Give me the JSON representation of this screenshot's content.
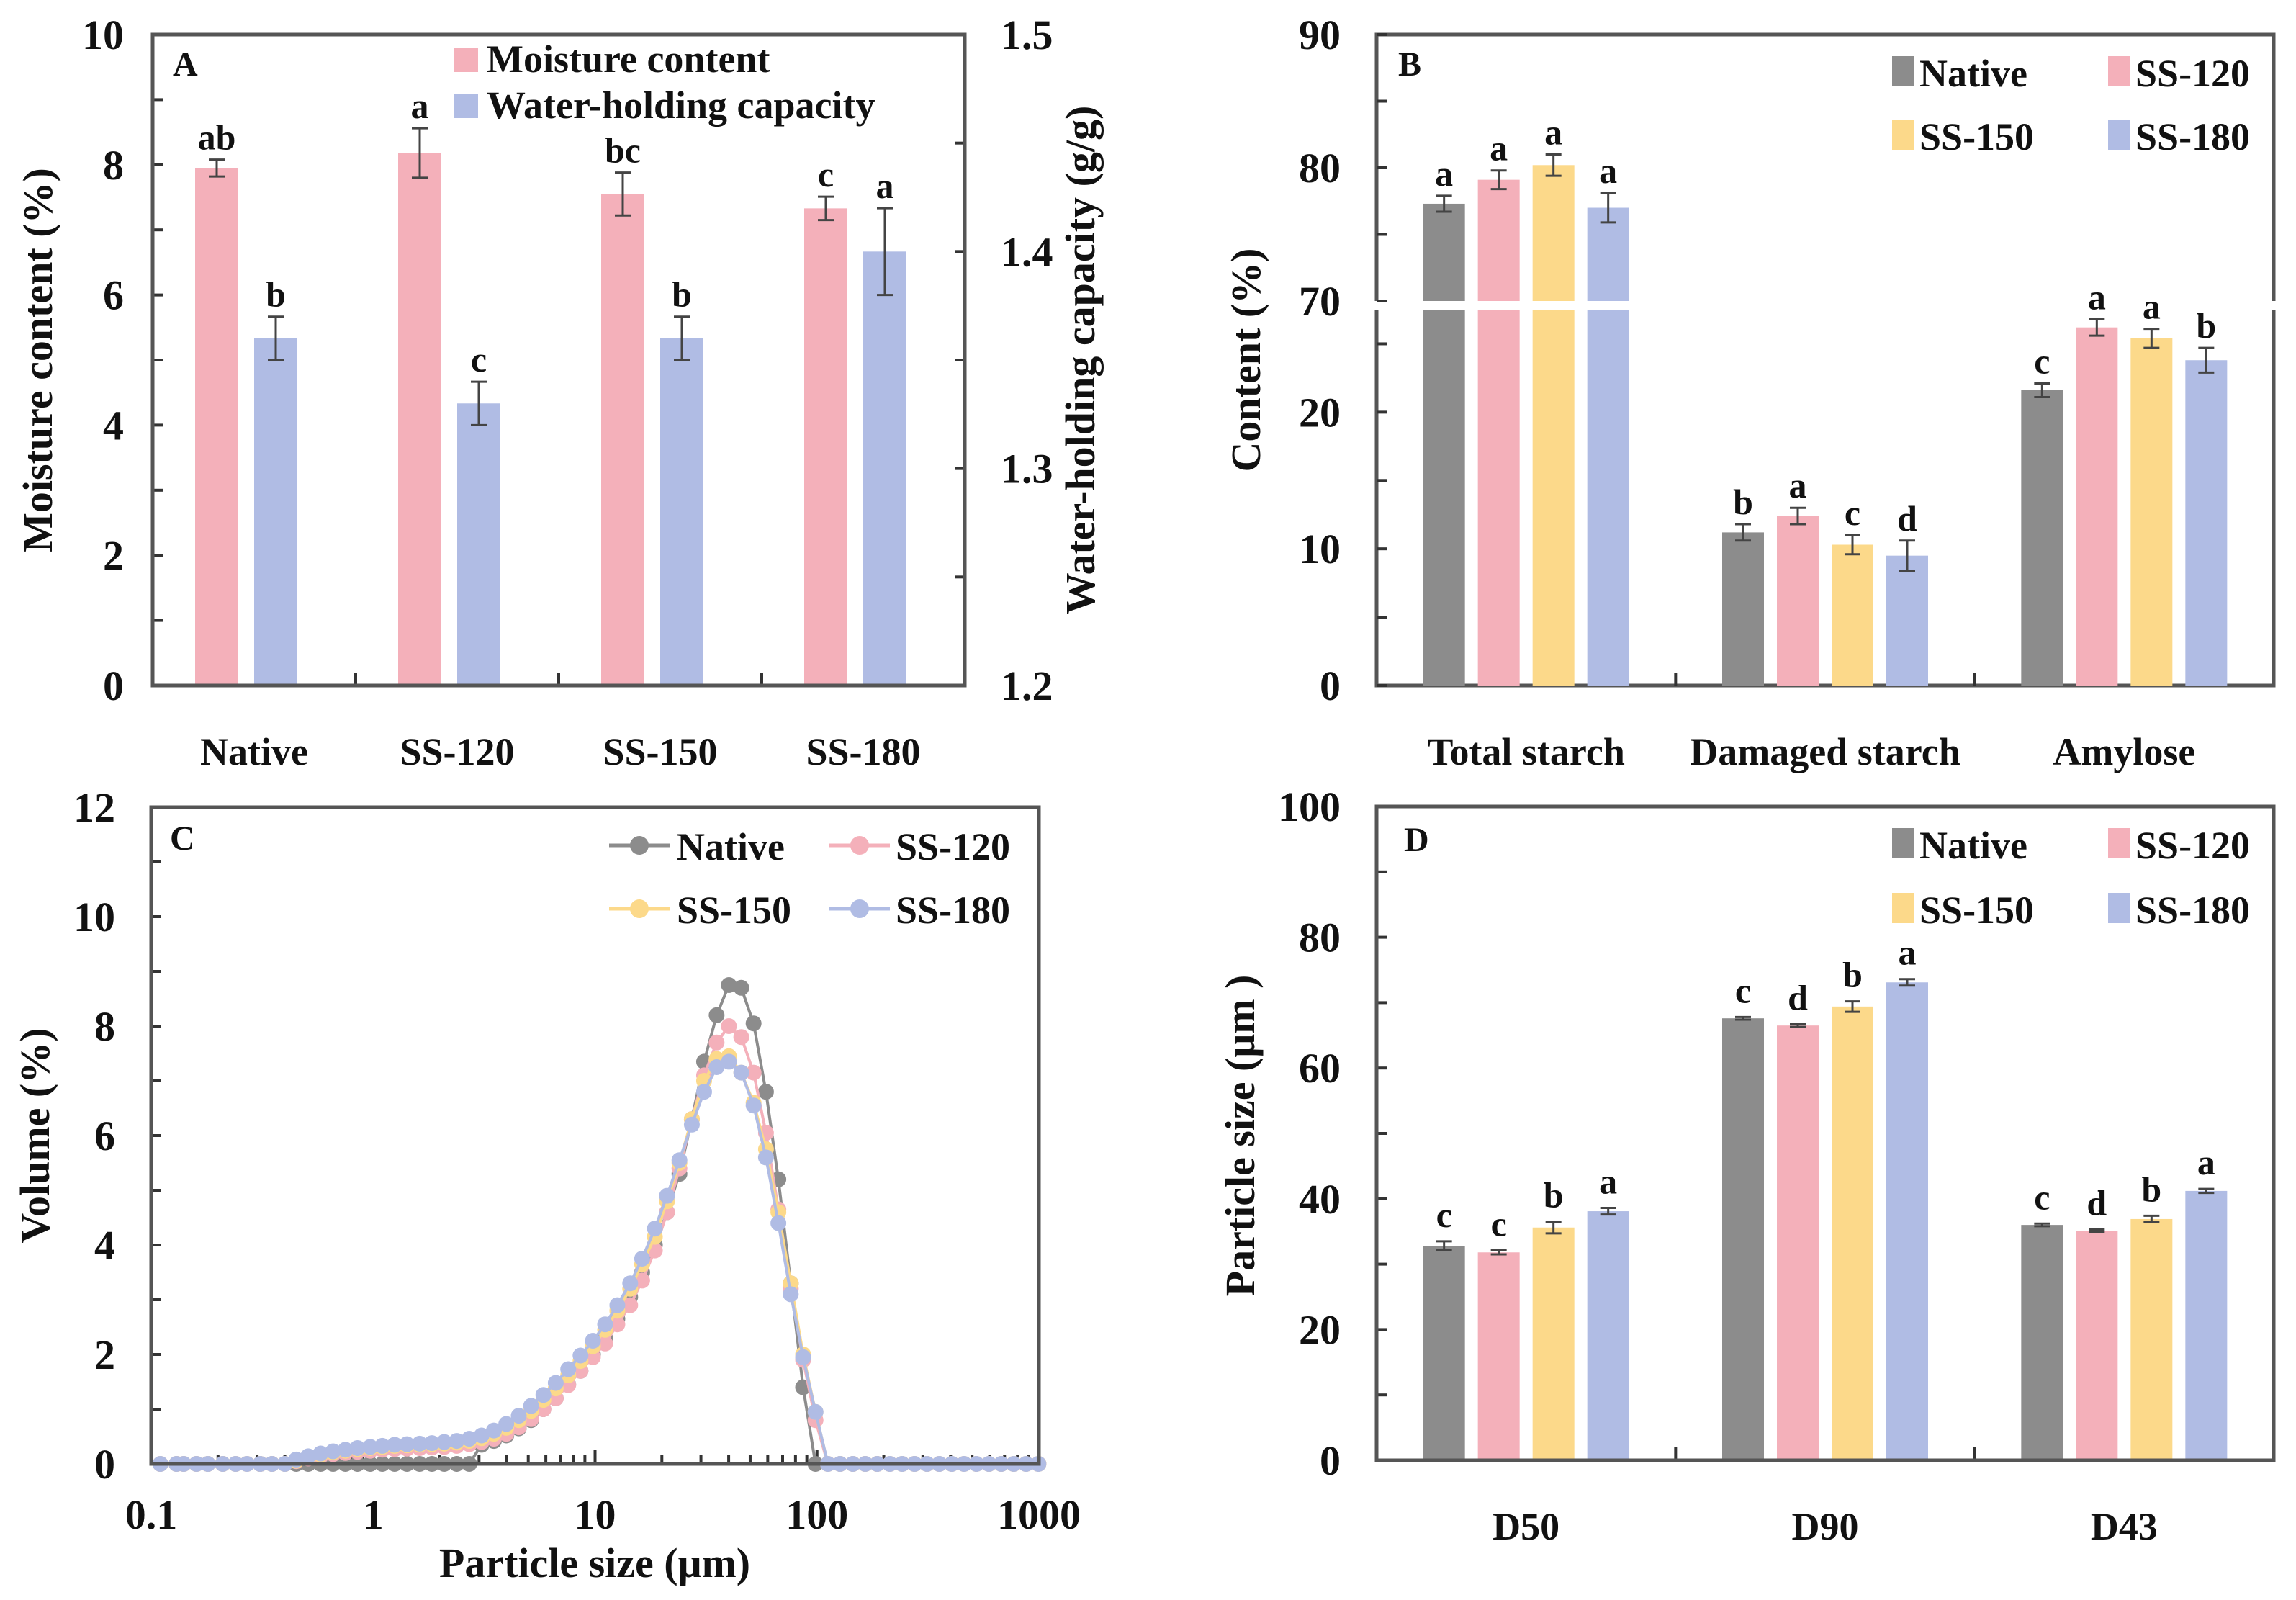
{
  "colors": {
    "Native": "#8c8c8c",
    "SS-120": "#f4b0ba",
    "SS-150": "#fcd98a",
    "SS-180": "#b0bce4",
    "moisture": "#f4b0ba",
    "whc": "#b0bce4"
  },
  "chart_data": [
    {
      "panel": "A",
      "type": "bar",
      "title": "",
      "categories": [
        "Native",
        "SS-120",
        "SS-150",
        "SS-180"
      ],
      "ylabel": "Moisture content (%)",
      "ylabel_right": "Water-holding capacity (g/g)",
      "ylim": [
        0,
        10
      ],
      "yticks": [
        0,
        2,
        4,
        6,
        8,
        10
      ],
      "ylim_right": [
        1.2,
        1.5
      ],
      "yticks_right": [
        1.2,
        1.3,
        1.4,
        1.5
      ],
      "legend_position": "top-right",
      "series": [
        {
          "name": "Moisture content",
          "axis": "left",
          "values": [
            7.95,
            8.18,
            7.55,
            7.33
          ],
          "errors": [
            0.13,
            0.38,
            0.33,
            0.18
          ],
          "letters": [
            "ab",
            "a",
            "bc",
            "c"
          ]
        },
        {
          "name": "Water-holding capacity",
          "axis": "right",
          "values": [
            1.36,
            1.33,
            1.36,
            1.4
          ],
          "errors": [
            0.01,
            0.01,
            0.01,
            0.02
          ],
          "letters": [
            "b",
            "c",
            "b",
            "a"
          ]
        }
      ]
    },
    {
      "panel": "B",
      "type": "bar",
      "title": "",
      "categories": [
        "Total starch",
        "Damaged starch",
        "Amylose"
      ],
      "ylabel": "Content (%)",
      "axis_break": {
        "lower": [
          0,
          27.5
        ],
        "upper": [
          70,
          90
        ]
      },
      "yticks": [
        0,
        10,
        20,
        70,
        80,
        90
      ],
      "legend_position": "top-right",
      "series": [
        {
          "name": "Native",
          "values": [
            77.3,
            11.2,
            21.6
          ],
          "errors": [
            0.6,
            0.6,
            0.5
          ],
          "letters": [
            "a",
            "b",
            "c"
          ]
        },
        {
          "name": "SS-120",
          "values": [
            79.1,
            12.4,
            26.2
          ],
          "errors": [
            0.7,
            0.6,
            0.6
          ],
          "letters": [
            "a",
            "a",
            "a"
          ]
        },
        {
          "name": "SS-150",
          "values": [
            80.2,
            10.3,
            25.4
          ],
          "errors": [
            0.8,
            0.7,
            0.7
          ],
          "letters": [
            "a",
            "c",
            "a"
          ]
        },
        {
          "name": "SS-180",
          "values": [
            77.0,
            9.5,
            23.8
          ],
          "errors": [
            1.1,
            1.1,
            0.9
          ],
          "letters": [
            "a",
            "d",
            "b"
          ]
        }
      ]
    },
    {
      "panel": "C",
      "type": "line",
      "title": "",
      "xlabel": "Particle size (μm)",
      "ylabel": "Volume (%)",
      "xscale": "log",
      "xlim": [
        0.1,
        1000
      ],
      "xticks": [
        0.1,
        1,
        10,
        100,
        1000
      ],
      "ylim": [
        0,
        12
      ],
      "yticks": [
        0,
        2,
        4,
        6,
        8,
        10,
        12
      ],
      "legend_position": "top-right",
      "x": [
        0.11,
        0.13,
        0.14,
        0.16,
        0.18,
        0.21,
        0.24,
        0.27,
        0.31,
        0.35,
        0.4,
        0.45,
        0.51,
        0.58,
        0.66,
        0.75,
        0.85,
        0.97,
        1.1,
        1.25,
        1.42,
        1.62,
        1.84,
        2.09,
        2.38,
        2.71,
        3.08,
        3.5,
        3.98,
        4.53,
        5.15,
        5.85,
        6.65,
        7.57,
        8.6,
        9.78,
        11.1,
        12.6,
        14.4,
        16.3,
        18.6,
        21.1,
        24.0,
        27.3,
        31.0,
        35.3,
        40.1,
        45.6,
        51.8,
        58.9,
        67.0,
        76.2,
        86.6,
        98.5,
        112,
        127,
        145,
        165,
        187,
        213,
        242,
        275,
        313,
        356,
        405,
        460,
        523,
        595,
        677,
        770,
        875,
        995
      ],
      "series": [
        {
          "name": "Native",
          "values": [
            0,
            0,
            0,
            0,
            0,
            0,
            0,
            0,
            0,
            0,
            0,
            0,
            0,
            0,
            0,
            0,
            0,
            0,
            0,
            0,
            0,
            0,
            0,
            0,
            0,
            0,
            0.35,
            0.42,
            0.52,
            0.65,
            0.8,
            1.0,
            1.2,
            1.45,
            1.7,
            2.0,
            2.3,
            2.65,
            3.05,
            3.5,
            4.0,
            4.6,
            5.3,
            6.3,
            7.35,
            8.2,
            8.75,
            8.7,
            8.05,
            6.8,
            5.2,
            3.3,
            1.4,
            0,
            0,
            0,
            0,
            0,
            0,
            0,
            0,
            0,
            0,
            0,
            0,
            0,
            0,
            0,
            0,
            0,
            0,
            0
          ]
        },
        {
          "name": "SS-120",
          "values": [
            0,
            0,
            0,
            0,
            0,
            0,
            0,
            0,
            0,
            0,
            0,
            0.05,
            0.1,
            0.14,
            0.18,
            0.2,
            0.22,
            0.24,
            0.26,
            0.27,
            0.28,
            0.29,
            0.3,
            0.31,
            0.33,
            0.36,
            0.4,
            0.46,
            0.55,
            0.67,
            0.82,
            1.0,
            1.2,
            1.44,
            1.7,
            1.95,
            2.2,
            2.55,
            2.9,
            3.35,
            3.9,
            4.6,
            5.4,
            6.3,
            7.1,
            7.7,
            8.0,
            7.8,
            7.15,
            6.05,
            4.65,
            3.2,
            1.9,
            0.8,
            0,
            0,
            0,
            0,
            0,
            0,
            0,
            0,
            0,
            0,
            0,
            0,
            0,
            0,
            0,
            0,
            0,
            0
          ]
        },
        {
          "name": "SS-150",
          "values": [
            0,
            0,
            0,
            0,
            0,
            0,
            0,
            0,
            0,
            0,
            0,
            0.06,
            0.12,
            0.17,
            0.21,
            0.24,
            0.27,
            0.29,
            0.31,
            0.33,
            0.34,
            0.35,
            0.36,
            0.37,
            0.39,
            0.42,
            0.47,
            0.55,
            0.66,
            0.8,
            0.97,
            1.17,
            1.38,
            1.62,
            1.88,
            2.15,
            2.45,
            2.8,
            3.2,
            3.65,
            4.15,
            4.8,
            5.5,
            6.3,
            7.0,
            7.4,
            7.45,
            7.15,
            6.6,
            5.75,
            4.6,
            3.3,
            2.0,
            0.95,
            0,
            0,
            0,
            0,
            0,
            0,
            0,
            0,
            0,
            0,
            0,
            0,
            0,
            0,
            0,
            0,
            0,
            0
          ]
        },
        {
          "name": "SS-180",
          "values": [
            0,
            0,
            0,
            0,
            0,
            0,
            0,
            0,
            0,
            0,
            0,
            0.08,
            0.14,
            0.19,
            0.23,
            0.26,
            0.29,
            0.31,
            0.33,
            0.35,
            0.36,
            0.37,
            0.38,
            0.4,
            0.42,
            0.46,
            0.52,
            0.61,
            0.73,
            0.88,
            1.06,
            1.26,
            1.48,
            1.73,
            1.98,
            2.25,
            2.55,
            2.9,
            3.3,
            3.75,
            4.3,
            4.9,
            5.55,
            6.2,
            6.8,
            7.25,
            7.35,
            7.15,
            6.55,
            5.6,
            4.4,
            3.1,
            1.95,
            0.95,
            0,
            0,
            0,
            0,
            0,
            0,
            0,
            0,
            0,
            0,
            0,
            0,
            0,
            0,
            0,
            0,
            0,
            0
          ]
        }
      ]
    },
    {
      "panel": "D",
      "type": "bar",
      "title": "",
      "categories": [
        "D50",
        "D90",
        "D43"
      ],
      "ylabel": "Particle size  (μm )",
      "ylim": [
        0,
        100
      ],
      "yticks": [
        0,
        20,
        40,
        60,
        80,
        100
      ],
      "legend_position": "top-right",
      "series": [
        {
          "name": "Native",
          "values": [
            32.8,
            67.6,
            36.0
          ],
          "errors": [
            0.7,
            0.2,
            0.2
          ],
          "letters": [
            "c",
            "c",
            "c"
          ]
        },
        {
          "name": "SS-120",
          "values": [
            31.8,
            66.5,
            35.1
          ],
          "errors": [
            0.3,
            0.2,
            0.2
          ],
          "letters": [
            "c",
            "d",
            "d"
          ]
        },
        {
          "name": "SS-150",
          "values": [
            35.6,
            69.4,
            36.9
          ],
          "errors": [
            0.9,
            0.8,
            0.5
          ],
          "letters": [
            "b",
            "b",
            "b"
          ]
        },
        {
          "name": "SS-180",
          "values": [
            38.1,
            73.1,
            41.2
          ],
          "errors": [
            0.5,
            0.5,
            0.3
          ],
          "letters": [
            "a",
            "a",
            "a"
          ]
        }
      ]
    }
  ]
}
